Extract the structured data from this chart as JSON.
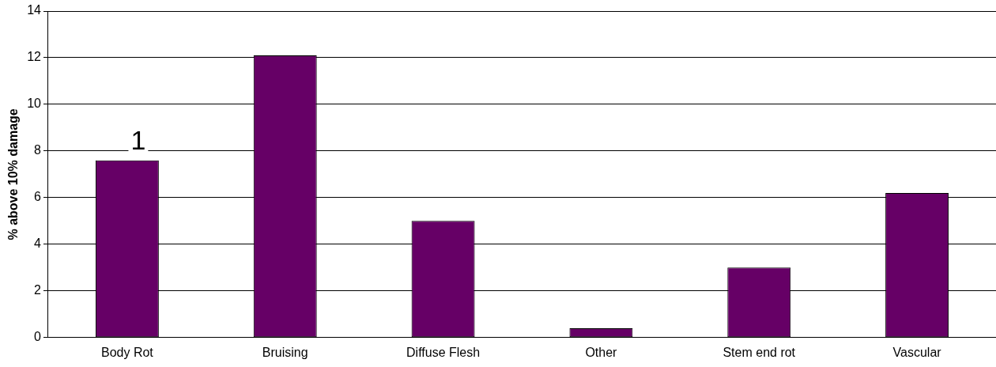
{
  "chart_data": {
    "type": "bar",
    "ylabel": "% above 10% damage",
    "categories": [
      "Body Rot",
      "Bruising",
      "Diffuse Flesh",
      "Other",
      "Stem end rot",
      "Vascular"
    ],
    "values": [
      7.6,
      12.1,
      5.0,
      0.4,
      3.0,
      6.2
    ],
    "color": "#660066",
    "ylim": [
      0,
      14
    ],
    "yticks": [
      0,
      2,
      4,
      6,
      8,
      10,
      12,
      14
    ],
    "grid": "y",
    "annotations": [
      {
        "text": "1",
        "x": "Body Rot",
        "y": 7.6
      }
    ]
  }
}
